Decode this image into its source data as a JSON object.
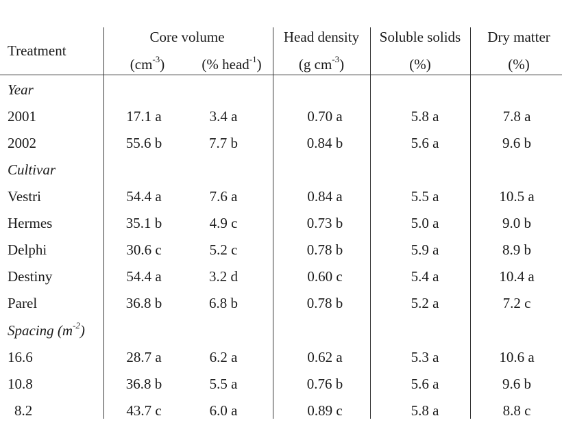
{
  "header": {
    "treatment": "Treatment",
    "core_volume": "Core volume",
    "core_unit1_pre": "(cm",
    "core_unit1_sup": "-3",
    "core_unit1_post": ")",
    "core_unit2_pre": "(% head",
    "core_unit2_sup": "-1",
    "core_unit2_post": ")",
    "head_density": "Head density",
    "head_unit_pre": "(g cm",
    "head_unit_sup": "-3",
    "head_unit_post": ")",
    "soluble_solids": "Soluble solids",
    "soluble_unit": "(%)",
    "dry_matter": "Dry matter",
    "dry_unit": "(%)"
  },
  "sections": {
    "year": "Year",
    "cultivar": "Cultivar",
    "spacing_pre": "Spacing (m",
    "spacing_sup": "-2",
    "spacing_post": ")"
  },
  "rows": [
    {
      "label": "2001",
      "core_cm": "17.1 a",
      "core_pct": "3.4 a",
      "head": "0.70 a",
      "soluble": "5.8 a",
      "dry": "7.8 a"
    },
    {
      "label": "2002",
      "core_cm": "55.6 b",
      "core_pct": "7.7 b",
      "head": "0.84 b",
      "soluble": "5.6 a",
      "dry": "9.6 b"
    },
    {
      "label": "Vestri",
      "core_cm": "54.4 a",
      "core_pct": "7.6 a",
      "head": "0.84 a",
      "soluble": "5.5 a",
      "dry": "10.5 a"
    },
    {
      "label": "Hermes",
      "core_cm": "35.1 b",
      "core_pct": "4.9 c",
      "head": "0.73 b",
      "soluble": "5.0 a",
      "dry": "9.0 b"
    },
    {
      "label": "Delphi",
      "core_cm": "30.6 c",
      "core_pct": "5.2 c",
      "head": "0.78 b",
      "soluble": "5.9 a",
      "dry": "8.9 b"
    },
    {
      "label": "Destiny",
      "core_cm": "54.4 a",
      "core_pct": "3.2 d",
      "head": "0.60 c",
      "soluble": "5.4 a",
      "dry": "10.4 a"
    },
    {
      "label": "Parel",
      "core_cm": "36.8 b",
      "core_pct": "6.8 b",
      "head": "0.78 b",
      "soluble": "5.2 a",
      "dry": "7.2 c"
    },
    {
      "label": "16.6",
      "core_cm": "28.7 a",
      "core_pct": "6.2 a",
      "head": "0.62 a",
      "soluble": "5.3 a",
      "dry": "10.6 a"
    },
    {
      "label": "10.8",
      "core_cm": "36.8 b",
      "core_pct": "5.5 a",
      "head": "0.76 b",
      "soluble": "5.6 a",
      "dry": "9.6 b"
    },
    {
      "label": "8.2",
      "core_cm": "43.7 c",
      "core_pct": "6.0 a",
      "head": "0.89 c",
      "soluble": "5.8 a",
      "dry": "8.8 c"
    }
  ]
}
